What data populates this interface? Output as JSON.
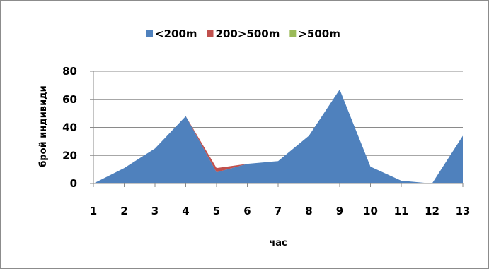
{
  "chart_data": {
    "type": "area",
    "stacked": true,
    "x": [
      1,
      2,
      3,
      4,
      5,
      6,
      7,
      8,
      9,
      10,
      11,
      12,
      13
    ],
    "series": [
      {
        "name": "<200m",
        "color": "#4f81bd",
        "values": [
          0,
          11,
          25,
          48,
          8,
          14,
          16,
          34,
          67,
          12,
          2,
          0,
          34
        ]
      },
      {
        "name": "200>500m",
        "color": "#c0504d",
        "values": [
          0,
          0,
          0,
          0,
          3,
          0,
          0,
          0,
          0,
          0,
          0,
          0,
          0
        ]
      },
      {
        "name": ">500m",
        "color": "#9bbb59",
        "values": [
          0,
          0,
          0,
          0,
          0,
          0,
          0,
          0,
          0,
          0,
          0,
          0,
          0
        ]
      }
    ],
    "xlabel": "час",
    "ylabel": "брой индивиди",
    "ylim": [
      0,
      80
    ],
    "yticks": [
      0,
      20,
      40,
      60,
      80
    ],
    "grid": true,
    "legend_position": "top"
  }
}
